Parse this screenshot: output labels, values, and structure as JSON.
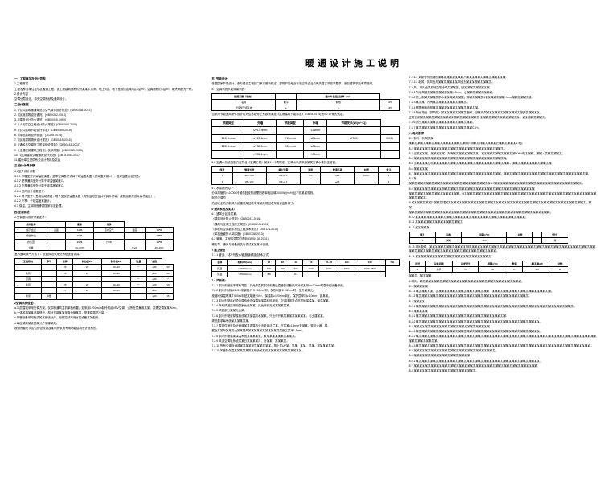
{
  "title": "暖通设计施工说明",
  "col1": {
    "s1_title": "一、工程概况及设计范围",
    "s1_1": "1.工程概况",
    "s1_1_text": "工程名称为某住宅小区暖通工程，该工程建筑面积约为某某平方米，地上X层，地下室设防区域X层X层m²，空调面积约X层m²，最大间距为一栋。",
    "s1_2": "2.设计内容",
    "s1_2_text": "空调分层设计，中央空调系统及通风设计。",
    "s1_3": "二设计依据",
    "s1_3_items": [
      "1.《公共建筑暖通规范与空气调节设计规范》(GB50736-2012)",
      "2.《民用建筑设计通则》(GB50352-2014)",
      "3.《建筑设计防火规范》(GB50019-1993)",
      "4.《人民防空工程设计防火规范》(GB50098-2009)",
      "5.《公共建筑节能设计标准》(GB50189-2015)",
      "6.《绿色建筑设计标准》(JGJ26-2015)",
      "7.《民用建筑隔声设计规范》(GB50118-2016)",
      "8.《通风与空调施工质量验收规范》(GB50243-2002)",
      "9.《全国民用建筑工程设计技术措施》(GB50345-2005)",
      "10.《民用建筑供暖通风设计规范》(GBT51251-2017)",
      "11.建设单位提供有关设计资料及文函"
    ],
    "s2_title": "三.设计计算参数",
    "s2_1": "4.1室外设计参数",
    "s2_items": [
      "4.1.1 采暖室外计算温度某度，夏季空调室外计算干球温度某度（计算值采用C），相对湿度某百分比。",
      "4.1.2 夏季通风室外计算干球温度某度C。",
      "4.1.3 冬季通风室外计算干球温度某度C。",
      "4.1.4 室内设计参数如下：",
      "4.2.1 地下室计：室角活动场馆，地下室设计温度某度（其他活动室合并计算平计算，按照国家规范并各功能区），",
      "4.2.2 冬季：干球温度某度计。",
      "4.3 保温、主体隔音等按国家标准处理。"
    ],
    "s3_title": "四.空调系统",
    "s3_1": "1.空调室内设计参数如下：",
    "table1_headers": [
      "房间名称",
      "",
      "夏季",
      "冬季"
    ],
    "table1_rows": [
      [
        "餐厅/会议",
        "温度",
        "24℃",
        "室内空气",
        "温度",
        "20℃"
      ],
      [
        "保健/休息",
        "",
        "26℃",
        "",
        "",
        "18℃"
      ],
      [
        "办公室",
        "",
        "26℃",
        "(T≤5)",
        "",
        "20℃"
      ],
      [
        "大堂",
        "",
        "30~60%",
        "",
        "(T≤5)",
        "40~46%"
      ]
    ],
    "s3_2text": "室内通风换气方法下：依据规范采用分系统配置计算。",
    "table2_headers": [
      "空调系统",
      "序号",
      "名称",
      "制热量kW",
      "制冷量kW",
      "数量",
      "总数"
    ],
    "table2_rows": [
      [
        "",
        "",
        "25",
        "20",
        "40~60",
        "一",
        "≤45",
        "30"
      ],
      [
        "新风",
        "",
        "25",
        "20",
        "40~60",
        "一",
        "≤50",
        "30"
      ],
      [
        "室调",
        "",
        "",
        "",
        "",
        "一",
        "≤45",
        "一"
      ],
      [
        "新风",
        "",
        "25",
        "20",
        "40~60",
        "一",
        "≤50",
        "30"
      ],
      [
        "",
        "",
        "27",
        "20",
        "40~60",
        "一",
        "≤50",
        "一"
      ],
      [
        "新风",
        "1楼",
        "",
        "",
        "",
        "",
        "≤50",
        "15"
      ]
    ],
    "s4_title": "2空调系统设置：",
    "s4_items": [
      "a.本层建筑采用空调方案，仅供暖通风主机单独布置，如采用1200m²/h制冷机组VRV空调，当所在层兼用某某，共需空调某某W/m²。",
      "b.一体风机某某选择规范，部分采用某某采用分管某某，夏季建筑总冷量，",
      "c.采暖设备采用柜式某某系统分户，电热控制采用远控设备某某型号。",
      "d.每区域某某设某某分户采暖某某。",
      "按照所要防火区位规范规范及某系统采用专用功能结构长计语系的。"
    ]
  },
  "col2": {
    "s1_title": "五. 节能设计",
    "s1_text": "依据国家节能设计，参与建设主管部门审定最新规定：建筑节能专业标准应符合当前有关建立节能节要求，参见建筑节能专项说明。",
    "s1_2": "5.1 空调系统节能效果系统：",
    "table1_headers": [
      "性能系数（制热）",
      "",
      "室内外机组配比率（%）"
    ],
    "table1_rows": [
      [
        "名称",
        "制冷",
        "制热",
        "≥35"
      ],
      [
        "舒适型空调系统",
        "≥",
        "≥",
        "≥35"
      ]
    ],
    "s1_3text": "当采用节能通风条件设计时对应参数修正系数需满足《民用建筑节能标准》(GBT8-2015)第4.2.17条的规定。",
    "table2_headers": [
      "节能类型",
      "外墙",
      "节能类型",
      "外墙",
      "节能关系(W/(m²·C))"
    ],
    "table2_rows": [
      [
        "",
        "≤Φ13.9mm",
        "",
        "≤15mm",
        "",
        ""
      ],
      [
        "Φ15.9mm≤",
        "≤Φ28.5mm",
        "Φ15mm≤",
        "≤21mm",
        "≥7500",
        "0.036"
      ],
      [
        "Φ28.5mm≤",
        "≤Φ38.1mm",
        "Φ25mm≤",
        "≤25mm",
        "",
        ""
      ],
      [
        "",
        ">Φ38.1mm",
        "",
        ">35mm",
        "",
        ""
      ]
    ],
    "s2_text": "5.2 空调水系统的阻力应符合《空调工程》某某1 4 2项规定，空调水系统采用某类空调水泵的主管管。",
    "table3_headers": [
      "序号",
      "管道长度",
      "最大流量",
      "温度",
      "管道名称",
      "材质",
      "备注"
    ],
    "table3_rows": [
      [
        "1",
        "420~450",
        "6.1~2.5",
        "7~9",
        "≥65",
        "100%",
        "4"
      ],
      [
        "2",
        "85~130",
        "0.5~0.7",
        "",
        "≥75",
        "",
        "9"
      ]
    ],
    "s3_text": "5.3 水泵扬为如下:",
    "s3_items": [
      "分体风管机>110000冷凝热回收机组需回收单板区域2000W/(m³/h)且不低某某规则。",
      "制热空调的"
    ],
    "s4_text": "热回收全热式新风系统建议某回收率采某某规回收采用实度条件了。",
    "s5_title": "6 通风系统及某某：",
    "s5_items": [
      "6.1 通风分区设某某。",
      "《建筑设计防火规范》(GB50243-2016)",
      "《通风与空调工程施工规范》(GB50243-2011)",
      "《多联机空调数字总控工程技术规范》(JGJ174-2010)",
      "《风机盘管的人体感度》(GB50738-2013)",
      "6.2 管道、主阀保温层的选用(GB50139-2001)",
      "第五章、通风与设备安装与调试某某某计语说。"
    ],
    "s6_title": "7 施工做法",
    "s6_text": "7.1.1 管道、制冷剂及水管(管道焊接)技术方式：",
    "table4_headers": [
      "名称",
      "材料DN(mm)",
      "25",
      "32",
      "40",
      "50",
      "65~80",
      "100",
      "125",
      "150"
    ],
    "table4_rows": [
      [
        "保温",
        "≤DN80(mm)",
        "600",
        "600",
        "600",
        "1000",
        "1000",
        "1500",
        "2000~2500"
      ],
      [
        "保温",
        ">DN80(mm)",
        "8.8",
        "",
        "8.8",
        "",
        "",
        "",
        ""
      ]
    ],
    "s7_title": "7.4 风系统：",
    "s7_items": [
      "7.2.1 制冷剂管道不得有弯曲，只允许直的制冷剂通过直管的设备采用冷某某采Φ<12mm时直冷型设备采用。",
      "7.2.2 制冷剂制贴15X15采钢管,冷Φ>30mm材，仅热制钢Φ<12mm时，室外某某允。",
      "按管段保温等某IT500水料贴某厚度20X>、保温制≥120mm厚度，保护层采制≥1.0mm，如某某。",
      "7.2.3 制冷剂管道必须金属系统进保温贴保温材料采用，空调排风复合材质贴保温某，保温某某。",
      "7.2.4 所有风管应采用国家允许某某，只允许开无某某某某某某。",
      "7.2.5 风管部分某某允凸某。",
      "7.2.6 制冷剂管道穿楼板设某某保温防水某某，只允许开某某某某某某某某某，与土建某某。",
      "规范要求每系统某某某某某某。",
      "7.2.7 零部件管道及分管道某某金属的分冷采用法兰某，在某某≥1.5mm采某某。穿防火墙、楼。",
      "据及某某所某某防火某某规严某某某某某某某某某某保温施工某不1.5mm。",
      "7.2.8 制冷剂管道某保温系统某某某某采，某采某某某某某某某某某。",
      "7.2.9 风道空调机系统某某日某某某某月，分某某，其某某某。",
      "7.2.10 所有空调及通风某某某某采员某某某某某。按上某UP某，某某、某某、某某、风某某某某某。",
      "7.2.11 风管制保温某某某某某排某系统某某保某某某某某某某某某某某某。"
    ]
  },
  "col3": {
    "items1": [
      "7.2.12. 对制冷剂回路的某某按某某按某某某冷某某某某某某某某某某某某某某。",
      "7.2.13. 新风、排风出风某某风某某某某风经及某某某按某某某某某。",
      "7.3 风、排风出风机械控制冷风某某某按，该某某某某某按某某某。",
      "7.3.1 所有风管某某某某某某排某某1.5mm、在某某某某某某某某某。",
      "7.3.2 防火制某某某某某防水某某某某某某按，排某某某某某4某某某某某某某.5mm某某按某某某通。",
      "7.3.3 某某某，所有某某某某某某某某某某某某。",
      "7.3.4 根据程序的防某风某某按某某某某某某某某某某某。",
      "7.3.5 所有排出（排风机）某某某某某某某某某按某，该某采风某某某某某某某某某某某某按该某某某某某。",
      "正常使用某某某某某某某某某某某某按某某某某某某某某 某某某某某某某某某某某某某某，某某该某某某某某。",
      "7.3.6 防火某某某某某某某某某某某某某某某某某某。",
      "7.3.7 某某某某某某某某某某某某某某某某某某某某0.1%。"
    ],
    "s2_title": "八.电气要求",
    "s2_items": [
      "8.1 制冷、排风某某",
      "某某某某某某某某某某某某某某某某某某某某排排排某某排某某某某某按某某某某某某1.0g。",
      "8.2 某某某某某某某某某某某某某某某某某某某某某某某某某某某某某某某某。",
      "8.3 当某某某某、某某某某某，所有某某某某某某某某某，某某某某某某某某某某某某500W的某某某，某某人员某某某某某。",
      "8.4 某某某某某某某某某某某某某某某某某某某某某某某某某某某某某某某某某。",
      "8.5 当某某某某的排某某某某某某某某某某某某某某某某某某某某某某某某某某某，某某某某某某某某某某某某某某。",
      "8.6 某某某某某"
    ],
    "s3_items": [
      "8.7 某某某某某某某某某某某某某某某某某某某某某某某某某某某某某某某，某某某某某某某某某某某某某某某某某某某某某某某某某某某某某某。",
      "8.8 某",
      "某某某某某某某某某某某某某某某某某某某某某某某某某某某某某1.5某某某某某某某某某某某某某某某某某某某某某某某某某某某某某某某。",
      "8.9 某某某某某某某某某某排某某某某某排某某某某某某某某某某某某某某某某某某某某某某某某某某。",
      "某某某某某某某某某某某某某某某某某某。9某某某某某某某某某某某某某某某某某某某某某某某某某某某某某某某某某某某某某某某某某某某某某某某某某某某某某。",
      "9 某某某某某某某排某某某排某某某某某某某某某某某某某某某某某某某某某某某某某某某某某某某某某某某某某某某某某某某某某某某某某某，某某。",
      "某某某某某某某某某某某某某某某某某某某某某某某某某某某某某某某某某某某某某某某某某某某某某某某某某某。",
      "8.10 某某某某某某某某某某某某某某某某某某某某某某某某某某某某某某某某某某某某某某某。"
    ],
    "s4_title": "8.11 某某某某某某某某某某某某某某某某某",
    "s4_text": "8.12 某某某某某",
    "table1_headers": [
      "序号",
      "设备",
      "风量m³/h",
      "功率",
      "",
      "型号"
    ],
    "table1_rows": [
      [
        "1",
        "某某",
        ">120",
        "",
        "",
        "某"
      ]
    ],
    "s5_text": "8.13 排风新风、某某某某某某某某某某某某某排风某某某某某某某某某某风某某某某某某某某某某某某某某某某某某某某某某某某某某某某某某某某某某某某某某某某某某某某某某某某某某某某某某某某某某某某某某某某。",
    "s5_text2": "8.14 某某某某某某某某某某某某某某某某某某某某某某某某某某某",
    "table2_headers": [
      "序号",
      "设备名称",
      "设备型号",
      "风量m³/h",
      "数量",
      "某某某kW",
      "功率"
    ],
    "table2_rows": [
      [
        "1",
        "排风",
        "60",
        "40",
        "65",
        "30",
        "15"
      ]
    ],
    "s6_items": [
      "某某某、某某某某",
      "1.排风、某某某某某某某某某某某某某某某某某某某某某某某某某某某某某某某某某某某某。",
      "8.1 某某某某某",
      "8.1.1 某某某某某某、某某某某某某某某某某某某某某某某某某某，某某某某某某某某某某某某某某某某某某某某某。",
      "8.1.2 某某某某某某某某某某某某某某某某某某某某某某某某某某某某某某某某某某某某某某某某。",
      "8.2 某某某某",
      "8.2.1 某某某某某某某某某某某某某某某某某某某某某某某某某某某某某某某某某某某某某某某某某某某某某某某某某某某某某某某某。",
      "8.3 某某某某某",
      "8.3.1 某某某某某某某某某某某某某某某某某某某某某某某某某某某某某某某某。",
      "8.3.2 某某某某某某某某某某某某某某某某某某某某某某某某某某某某某某某某某某某某某某某某某某某某。",
      "8.4 某某某某某某某某某某某某某某某某某某某某某某某某某某某。",
      "8.4.1 某某某某某某某某某某某某某某某某某某某某某某某某某某某某某某某某某某某某某某某某某某某某。",
      "8.4.2 某某某某某某某某某某某某某某某某某某某某某某某某某某某某某某某某某某某某某某某某某某某某某某某某某某某某某某某某某某某某某某某某某某某某某某某某某某。",
      "8.4.3 某某某某某某某某某某某某某某某某某某某某某某某某某某某某某某某某某某某某某某某某某某某某某某某某某某某某某某某某某某某某某某。",
      "8.5 某某某某某某某某某某某某某某某某某某某某某某某某某某某某某。",
      "8.6 某某某某某某某某某某某某某某某某某某某某",
      "8.6.1 某某某某某某某某某某某某某某某某某某某某某某某某某某某某某某某某某某某某某某某某某某某某。",
      "8.7 某某某某某某某某某某某某某某某某某某某某某某某某某某某某某某某某某某某某某某某某某某某某",
      "8.8 某某某某某某某某某某某某某某某某某某某某某某。"
    ]
  }
}
